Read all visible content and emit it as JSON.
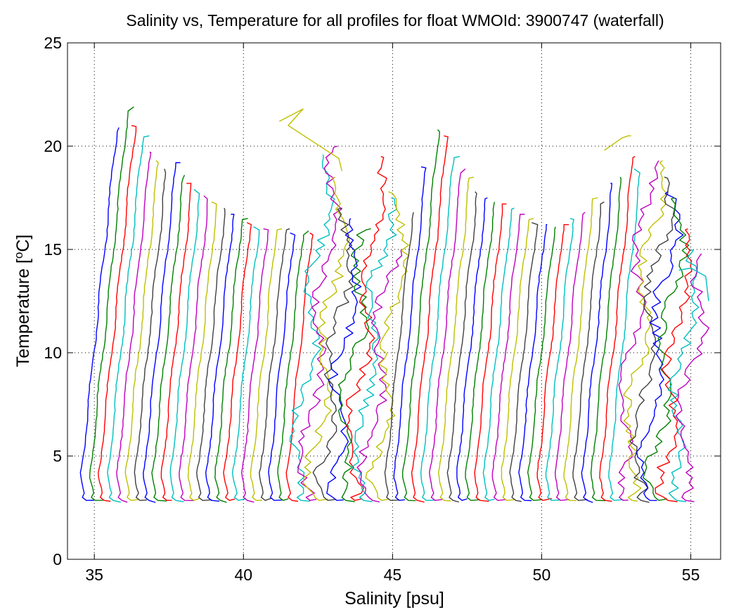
{
  "chart_data": {
    "type": "line",
    "title": "Salinity vs, Temperature for all profiles for float WMOId: 3900747 (waterfall)",
    "xlabel": "Salinity [psu]",
    "ylabel_main": "Temperature [",
    "ylabel_sup": "o",
    "ylabel_tail": "C]",
    "xlim": [
      34.1,
      56.0
    ],
    "ylim": [
      0,
      25
    ],
    "xticks": [
      35,
      40,
      45,
      50,
      55
    ],
    "yticks": [
      0,
      5,
      10,
      15,
      20,
      25
    ],
    "grid": true,
    "box": true,
    "color_cycle": [
      "#0000ff",
      "#008000",
      "#ff0000",
      "#00bfbf",
      "#bf00bf",
      "#bfbf00",
      "#404040"
    ],
    "profile_offsets": [
      34.55,
      34.85,
      35.15,
      35.45,
      35.75,
      36.05,
      36.35,
      36.65,
      36.95,
      37.25,
      37.55,
      37.85,
      38.15,
      38.45,
      38.75,
      39.05,
      39.35,
      39.65,
      39.95,
      40.25,
      40.55,
      40.85,
      41.15,
      41.45,
      41.75,
      42.05,
      42.35,
      42.65,
      42.95,
      43.25,
      43.55,
      43.85,
      44.15,
      44.45,
      44.75,
      45.05,
      45.35,
      45.65,
      45.95,
      46.25,
      46.55,
      46.85,
      47.15,
      47.45,
      47.75,
      48.05,
      48.35,
      48.65,
      48.95,
      49.25,
      49.55,
      49.85,
      50.15,
      50.45,
      50.75,
      51.05,
      51.35,
      51.65,
      51.95,
      52.25,
      52.55,
      52.85,
      53.15,
      53.45,
      53.75,
      54.05,
      54.35,
      54.65
    ],
    "profile_top_temps": [
      20.9,
      21.9,
      21.0,
      20.5,
      19.7,
      19.3,
      18.9,
      19.2,
      18.6,
      18.2,
      17.9,
      17.6,
      17.3,
      17.0,
      16.7,
      16.5,
      16.3,
      16.1,
      16.0,
      16.0,
      16.0,
      15.8,
      15.9,
      15.8,
      19.6,
      20.0,
      18.5,
      17.0,
      16.5,
      16.0,
      19.5,
      17.5,
      15.0,
      17.8,
      16.8,
      19.0,
      20.8,
      20.5,
      19.5,
      18.9,
      18.5,
      17.8,
      17.5,
      17.3,
      17.2,
      17.0,
      16.7,
      16.5,
      16.3,
      16.2,
      16.1,
      16.2,
      16.5,
      16.8,
      17.5,
      17.3,
      18.2,
      18.5,
      19.5,
      18.9,
      19.3,
      19.3,
      18.5,
      17.8,
      17.5,
      16.0,
      15.0,
      14.8
    ],
    "wiggly_profiles": [
      24,
      25,
      26,
      27,
      28,
      29,
      30,
      31,
      32,
      33,
      60,
      61,
      62,
      63,
      64,
      65,
      66,
      67
    ],
    "extra_segments": [
      {
        "color": "#bfbf00",
        "points": [
          [
            41.2,
            21.2
          ],
          [
            42.0,
            21.8
          ],
          [
            41.5,
            21.0
          ],
          [
            43.2,
            19.4
          ],
          [
            43.3,
            18.8
          ]
        ]
      },
      {
        "color": "#bfbf00",
        "points": [
          [
            52.1,
            19.8
          ],
          [
            52.7,
            20.4
          ],
          [
            52.9,
            20.5
          ],
          [
            53.0,
            20.5
          ]
        ]
      },
      {
        "color": "#00bfbf",
        "points": [
          [
            54.6,
            14.0
          ],
          [
            55.0,
            14.1
          ],
          [
            55.5,
            13.7
          ],
          [
            55.6,
            12.5
          ]
        ]
      }
    ]
  }
}
